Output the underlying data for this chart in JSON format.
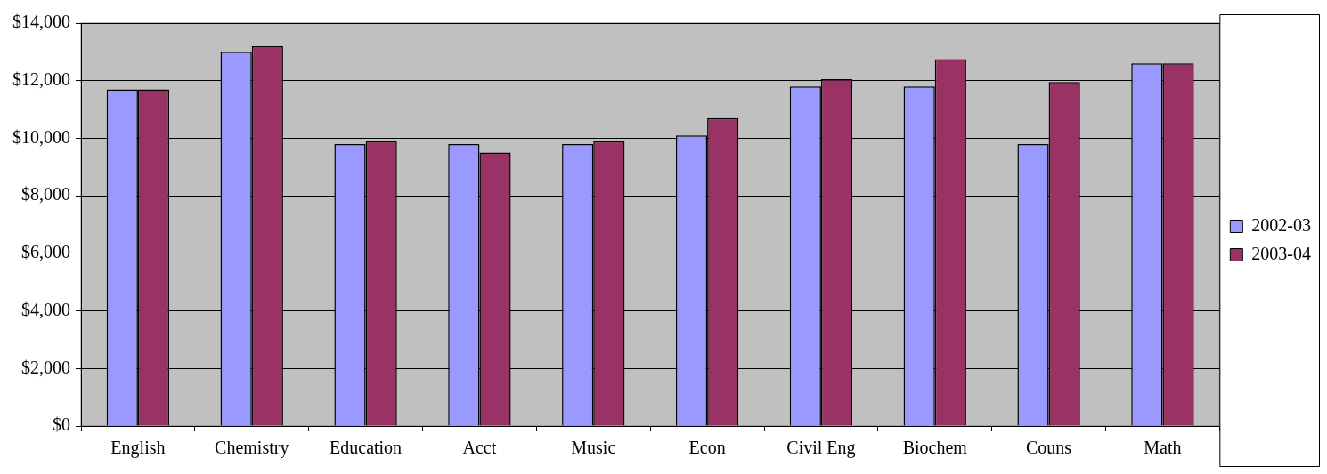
{
  "chart_data": {
    "type": "bar",
    "categories": [
      "English",
      "Chemistry",
      "Education",
      "Acct",
      "Music",
      "Econ",
      "Civil Eng",
      "Biochem",
      "Couns",
      "Math"
    ],
    "series": [
      {
        "name": "2002-03",
        "color": "#9999ff",
        "values": [
          11700,
          13000,
          9800,
          9800,
          9800,
          10100,
          11800,
          11800,
          9800,
          12600
        ]
      },
      {
        "name": "2003-04",
        "color": "#993366",
        "values": [
          11700,
          13200,
          9900,
          9500,
          9900,
          10700,
          12050,
          12750,
          11950,
          12600
        ]
      }
    ],
    "ylim": [
      0,
      14000
    ],
    "yticks": [
      {
        "value": 0,
        "label": "$0"
      },
      {
        "value": 2000,
        "label": "$2,000"
      },
      {
        "value": 4000,
        "label": "$4,000"
      },
      {
        "value": 6000,
        "label": "$6,000"
      },
      {
        "value": 8000,
        "label": "$8,000"
      },
      {
        "value": 10000,
        "label": "$10,000"
      },
      {
        "value": 12000,
        "label": "$12,000"
      },
      {
        "value": 14000,
        "label": "$14,000"
      }
    ],
    "grid": "y",
    "legend": "right"
  }
}
